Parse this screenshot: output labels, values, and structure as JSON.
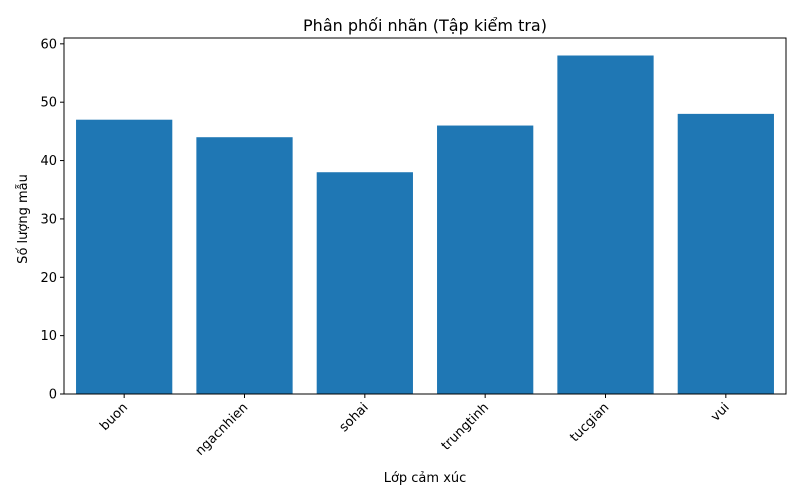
{
  "chart_data": {
    "type": "bar",
    "title": "Phân phối nhãn (Tập kiểm tra)",
    "xlabel": "Lớp cảm xúc",
    "ylabel": "Số lượng mẫu",
    "categories": [
      "buon",
      "ngacnhien",
      "sohai",
      "trungtinh",
      "tucgian",
      "vui"
    ],
    "values": [
      47,
      44,
      38,
      46,
      58,
      48
    ],
    "ylim": [
      0,
      61
    ],
    "yticks": [
      0,
      10,
      20,
      30,
      40,
      50,
      60
    ],
    "xtick_rotation_deg": 45,
    "bar_color": "#1f77b4",
    "grid": false,
    "legend": "none"
  }
}
